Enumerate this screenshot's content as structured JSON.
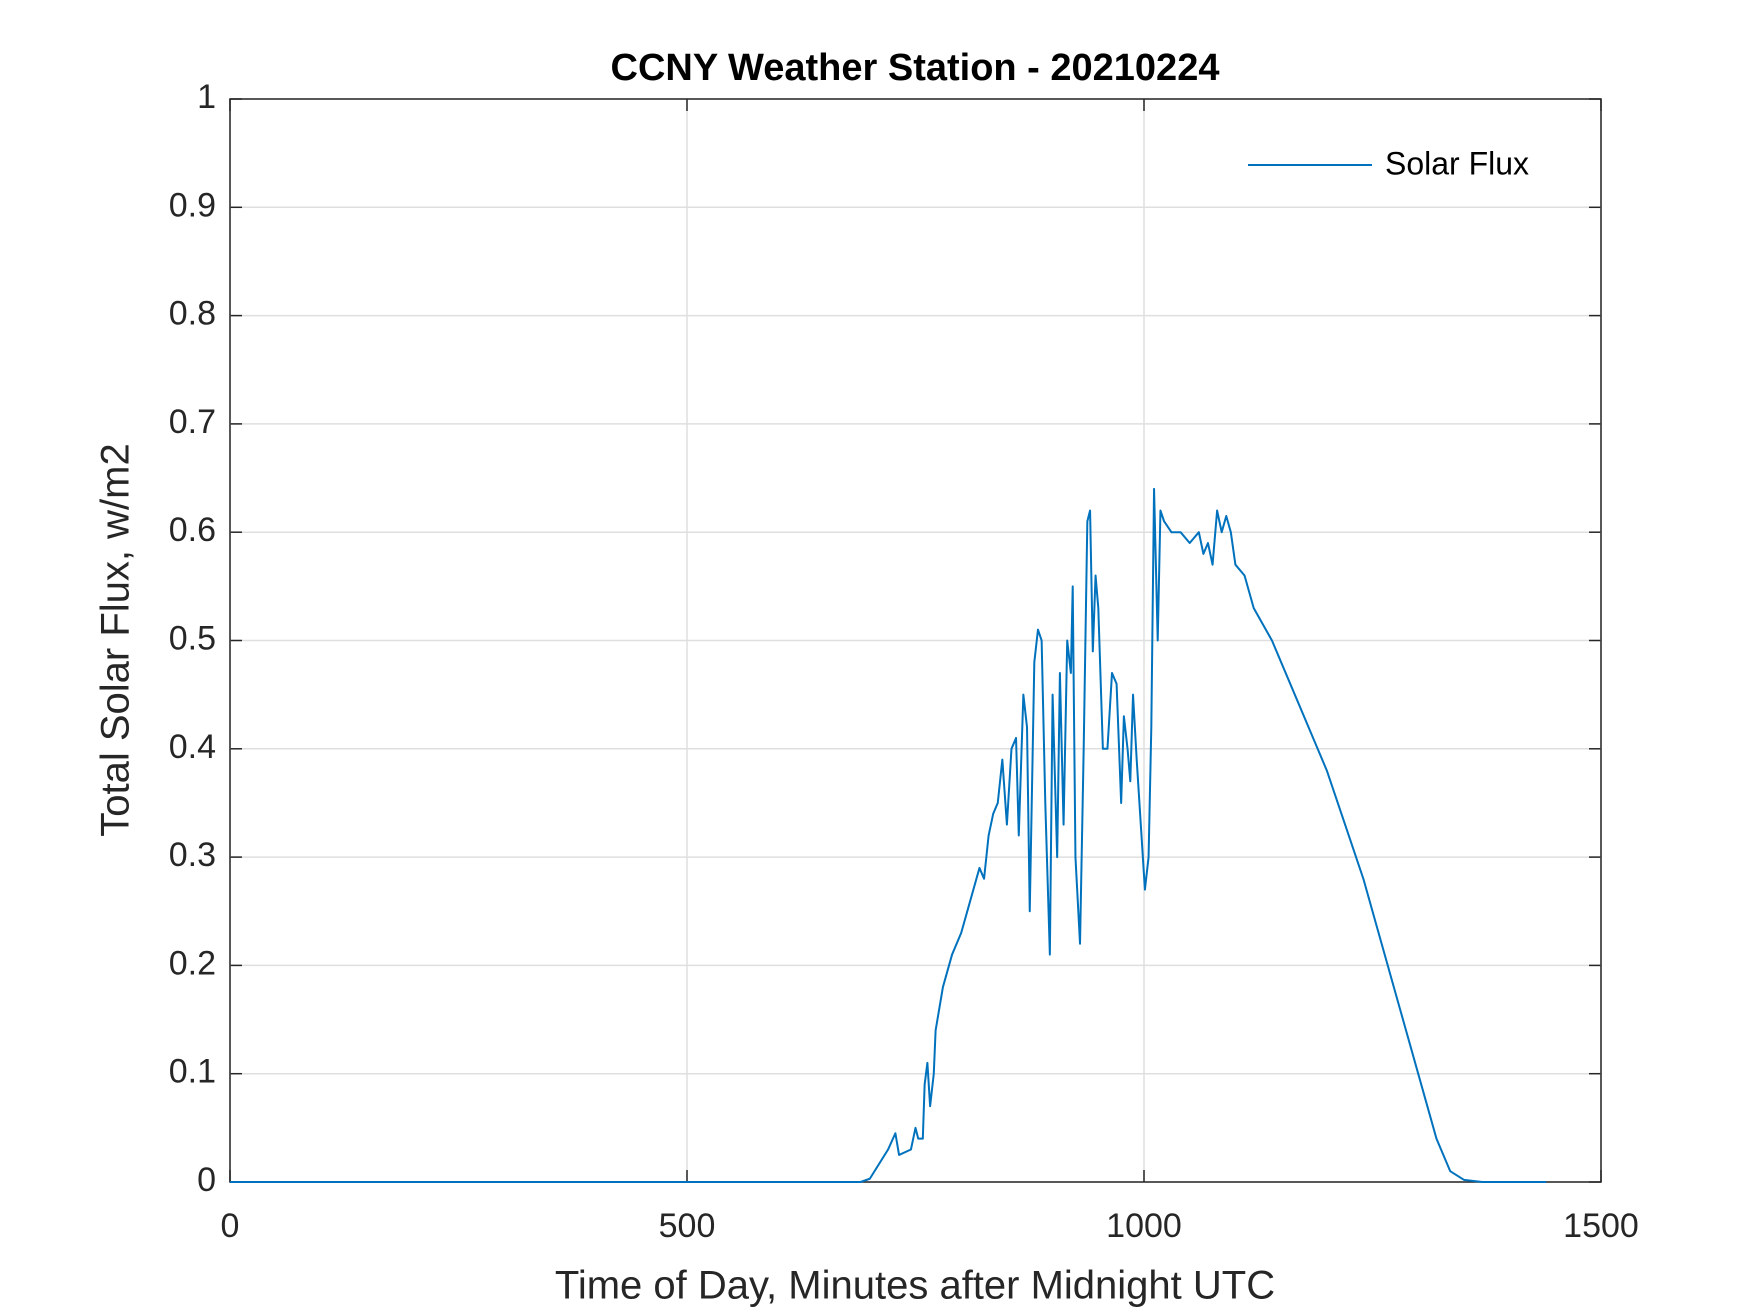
{
  "chart_data": {
    "type": "line",
    "title": "CCNY Weather Station - 20210224",
    "xlabel": "Time of Day, Minutes after Midnight UTC",
    "ylabel": "Total Solar Flux, w/m2",
    "x": [
      0,
      690,
      700,
      720,
      728,
      732,
      745,
      750,
      753,
      758,
      760,
      763,
      766,
      770,
      772,
      780,
      790,
      800,
      810,
      820,
      825,
      830,
      835,
      840,
      845,
      850,
      855,
      860,
      863,
      868,
      872,
      875,
      880,
      884,
      888,
      892,
      897,
      900,
      905,
      908,
      912,
      916,
      920,
      922,
      925,
      930,
      934,
      938,
      941,
      944,
      947,
      950,
      955,
      960,
      965,
      970,
      975,
      978,
      982,
      985,
      988,
      992,
      998,
      1001,
      1005,
      1008,
      1011,
      1015,
      1018,
      1022,
      1030,
      1040,
      1050,
      1060,
      1065,
      1070,
      1075,
      1080,
      1085,
      1090,
      1095,
      1100,
      1110,
      1120,
      1140,
      1160,
      1180,
      1200,
      1220,
      1240,
      1260,
      1280,
      1300,
      1320,
      1335,
      1350,
      1370,
      1440
    ],
    "series": [
      {
        "name": "Solar Flux",
        "color": "#0072bd",
        "values": [
          0,
          0,
          0.003,
          0.03,
          0.045,
          0.025,
          0.03,
          0.05,
          0.04,
          0.04,
          0.09,
          0.11,
          0.07,
          0.1,
          0.14,
          0.18,
          0.21,
          0.23,
          0.26,
          0.29,
          0.28,
          0.32,
          0.34,
          0.35,
          0.39,
          0.33,
          0.4,
          0.41,
          0.32,
          0.45,
          0.42,
          0.25,
          0.48,
          0.51,
          0.5,
          0.35,
          0.21,
          0.45,
          0.3,
          0.47,
          0.33,
          0.5,
          0.47,
          0.55,
          0.3,
          0.22,
          0.4,
          0.61,
          0.62,
          0.49,
          0.56,
          0.53,
          0.4,
          0.4,
          0.47,
          0.46,
          0.35,
          0.43,
          0.4,
          0.37,
          0.45,
          0.39,
          0.31,
          0.27,
          0.3,
          0.42,
          0.64,
          0.5,
          0.62,
          0.61,
          0.6,
          0.6,
          0.59,
          0.6,
          0.58,
          0.59,
          0.57,
          0.62,
          0.6,
          0.615,
          0.6,
          0.57,
          0.56,
          0.53,
          0.5,
          0.46,
          0.42,
          0.38,
          0.33,
          0.28,
          0.22,
          0.16,
          0.1,
          0.04,
          0.01,
          0.002,
          0,
          0
        ]
      }
    ],
    "xlim": [
      0,
      1500
    ],
    "xticks": [
      0,
      500,
      1000,
      1500
    ],
    "ylim": [
      0,
      1
    ],
    "yticks": [
      0,
      0.1,
      0.2,
      0.3,
      0.4,
      0.5,
      0.6,
      0.7,
      0.8,
      0.9,
      1
    ],
    "grid": true,
    "legend": "northeast"
  }
}
